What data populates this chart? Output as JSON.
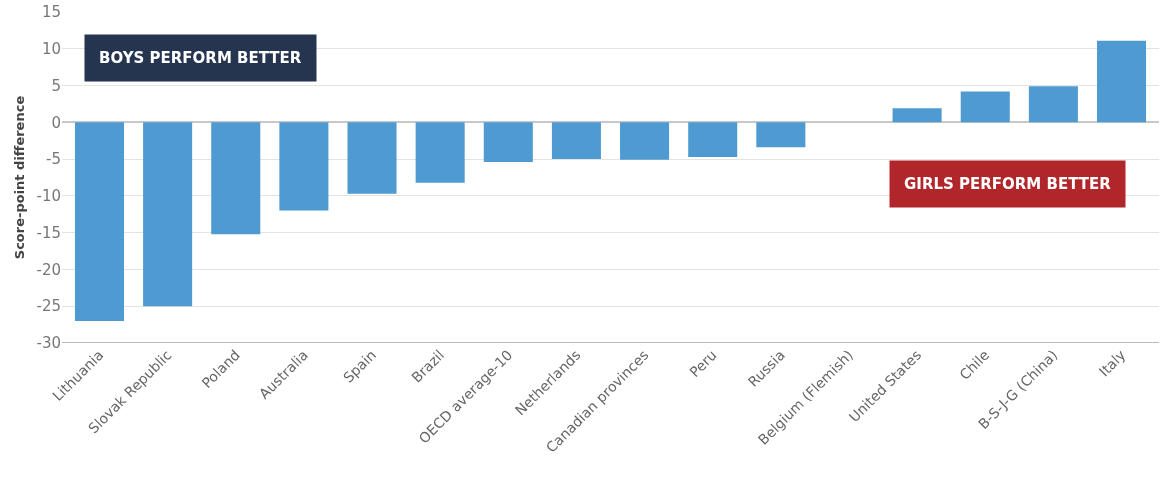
{
  "chart_data": {
    "type": "bar",
    "ylabel": "Score-point difference",
    "categories": [
      "Lithuania",
      "Slovak Republic",
      "Poland",
      "Australia",
      "Spain",
      "Brazil",
      "OECD average-10",
      "Netherlands",
      "Canadian provinces",
      "Peru",
      "Russia",
      "Belgium (Flemish)",
      "United States",
      "Chile",
      "B-S-J-G (China)",
      "Italy"
    ],
    "values": [
      -27,
      -25,
      -15.2,
      -12,
      -9.7,
      -8.2,
      -5.4,
      -5,
      -5.1,
      -4.7,
      -3.4,
      0,
      1.9,
      4.2,
      4.9,
      11.1
    ],
    "color": "#4f9bd1",
    "ylim": [
      -30,
      15
    ],
    "yticks": [
      -30,
      -25,
      -20,
      -15,
      -10,
      -5,
      0,
      5,
      10,
      15
    ],
    "grid": "y",
    "annotations": [
      "BOYS PERFORM BETTER",
      "GIRLS PERFORM BETTER"
    ]
  }
}
